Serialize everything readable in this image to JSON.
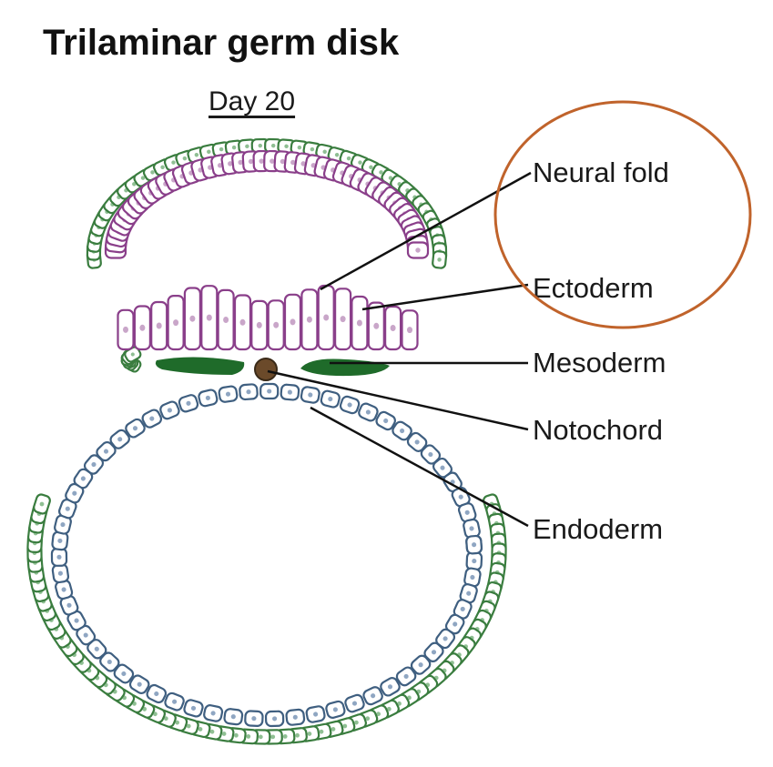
{
  "title": "Trilaminar germ disk",
  "subtitle": "Day 20",
  "labels": {
    "neural_fold": "Neural fold",
    "ectoderm": "Ectoderm",
    "mesoderm": "Mesoderm",
    "notochord": "Notochord",
    "endoderm": "Endoderm"
  },
  "colors": {
    "outer_layer": "#3a7d3f",
    "outer_nucleus": "#8fbf93",
    "ectoderm": "#8a3f8a",
    "ectoderm_nucleus": "#c9a6c9",
    "endoderm": "#3f5f80",
    "endoderm_nucleus": "#8fa6c2",
    "mesoderm": "#1f6b2a",
    "notochord": "#6b4a2a",
    "highlight_circle": "#c0632b"
  }
}
